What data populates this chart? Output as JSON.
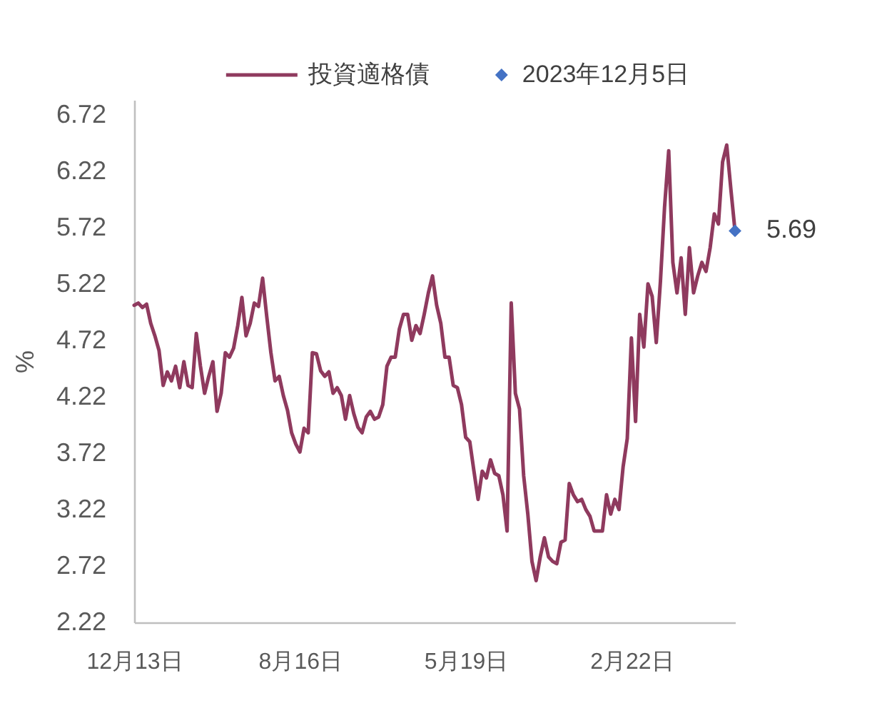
{
  "chart_data": {
    "type": "line",
    "ylabel": "%",
    "categories": [
      "12月13日",
      null,
      null,
      null,
      null,
      null,
      null,
      null,
      null,
      null,
      null,
      null,
      null,
      null,
      null,
      null,
      null,
      null,
      null,
      null,
      null,
      null,
      null,
      null,
      null,
      null,
      null,
      null,
      null,
      null,
      null,
      null,
      null,
      null,
      null,
      null,
      null,
      null,
      null,
      null,
      "8月16日",
      null,
      null,
      null,
      null,
      null,
      null,
      null,
      null,
      null,
      null,
      null,
      null,
      null,
      null,
      null,
      null,
      null,
      null,
      null,
      null,
      null,
      null,
      null,
      null,
      null,
      null,
      null,
      null,
      null,
      null,
      null,
      null,
      null,
      null,
      null,
      null,
      null,
      null,
      null,
      "5月19日",
      null,
      null,
      null,
      null,
      null,
      null,
      null,
      null,
      null,
      null,
      null,
      null,
      null,
      null,
      null,
      null,
      null,
      null,
      null,
      null,
      null,
      null,
      null,
      null,
      null,
      null,
      null,
      null,
      null,
      null,
      null,
      null,
      null,
      null,
      null,
      null,
      null,
      null,
      null,
      "2月22日",
      null,
      null,
      null,
      null,
      null,
      null,
      null,
      null,
      null,
      null,
      null,
      null,
      null,
      null,
      null,
      null,
      null,
      null,
      null,
      null,
      null,
      null,
      null,
      null,
      null
    ],
    "series": [
      {
        "name": "投資適格債",
        "color": "#8f3a5e",
        "values": [
          5.03,
          5.05,
          5.01,
          5.04,
          4.87,
          4.76,
          4.63,
          4.32,
          4.44,
          4.36,
          4.49,
          4.3,
          4.53,
          4.32,
          4.3,
          4.78,
          4.49,
          4.25,
          4.4,
          4.53,
          4.09,
          4.25,
          4.61,
          4.57,
          4.65,
          4.85,
          5.1,
          4.76,
          4.87,
          5.05,
          5.02,
          5.27,
          4.93,
          4.61,
          4.36,
          4.4,
          4.23,
          4.1,
          3.9,
          3.8,
          3.73,
          3.94,
          3.9,
          4.61,
          4.6,
          4.45,
          4.4,
          4.44,
          4.25,
          4.3,
          4.23,
          4.02,
          4.23,
          4.07,
          3.95,
          3.9,
          4.04,
          4.09,
          4.02,
          4.04,
          4.15,
          4.49,
          4.57,
          4.57,
          4.82,
          4.95,
          4.95,
          4.72,
          4.85,
          4.78,
          4.95,
          5.14,
          5.29,
          5.03,
          4.87,
          4.57,
          4.57,
          4.32,
          4.3,
          4.15,
          3.86,
          3.82,
          3.56,
          3.31,
          3.56,
          3.5,
          3.66,
          3.54,
          3.52,
          3.35,
          3.03,
          5.05,
          4.25,
          4.11,
          3.52,
          3.18,
          2.76,
          2.59,
          2.8,
          2.97,
          2.8,
          2.76,
          2.74,
          2.93,
          2.95,
          3.45,
          3.35,
          3.29,
          3.31,
          3.22,
          3.16,
          3.03,
          3.03,
          3.03,
          3.35,
          3.18,
          3.31,
          3.22,
          3.6,
          3.85,
          4.74,
          4.0,
          4.95,
          4.66,
          5.22,
          5.11,
          4.7,
          5.24,
          5.9,
          6.4,
          5.41,
          5.14,
          5.45,
          4.95,
          5.54,
          5.14,
          5.29,
          5.41,
          5.33,
          5.54,
          5.84,
          5.75,
          6.3,
          6.45,
          6.06,
          5.69
        ]
      },
      {
        "type": "scatter",
        "name": "2023年12月5日",
        "color": "#4472c4",
        "marker": "diamond",
        "values": [
          null,
          null,
          null,
          null,
          null,
          null,
          null,
          null,
          null,
          null,
          null,
          null,
          null,
          null,
          null,
          null,
          null,
          null,
          null,
          null,
          null,
          null,
          null,
          null,
          null,
          null,
          null,
          null,
          null,
          null,
          null,
          null,
          null,
          null,
          null,
          null,
          null,
          null,
          null,
          null,
          null,
          null,
          null,
          null,
          null,
          null,
          null,
          null,
          null,
          null,
          null,
          null,
          null,
          null,
          null,
          null,
          null,
          null,
          null,
          null,
          null,
          null,
          null,
          null,
          null,
          null,
          null,
          null,
          null,
          null,
          null,
          null,
          null,
          null,
          null,
          null,
          null,
          null,
          null,
          null,
          null,
          null,
          null,
          null,
          null,
          null,
          null,
          null,
          null,
          null,
          null,
          null,
          null,
          null,
          null,
          null,
          null,
          null,
          null,
          null,
          null,
          null,
          null,
          null,
          null,
          null,
          null,
          null,
          null,
          null,
          null,
          null,
          null,
          null,
          null,
          null,
          null,
          null,
          null,
          null,
          null,
          null,
          null,
          null,
          null,
          null,
          null,
          null,
          null,
          null,
          null,
          null,
          null,
          null,
          null,
          null,
          null,
          null,
          null,
          null,
          null,
          null,
          null,
          null,
          null,
          5.69
        ],
        "value_labels": [
          null,
          null,
          null,
          null,
          null,
          null,
          null,
          null,
          null,
          null,
          null,
          null,
          null,
          null,
          null,
          null,
          null,
          null,
          null,
          null,
          null,
          null,
          null,
          null,
          null,
          null,
          null,
          null,
          null,
          null,
          null,
          null,
          null,
          null,
          null,
          null,
          null,
          null,
          null,
          null,
          null,
          null,
          null,
          null,
          null,
          null,
          null,
          null,
          null,
          null,
          null,
          null,
          null,
          null,
          null,
          null,
          null,
          null,
          null,
          null,
          null,
          null,
          null,
          null,
          null,
          null,
          null,
          null,
          null,
          null,
          null,
          null,
          null,
          null,
          null,
          null,
          null,
          null,
          null,
          null,
          null,
          null,
          null,
          null,
          null,
          null,
          null,
          null,
          null,
          null,
          null,
          null,
          null,
          null,
          null,
          null,
          null,
          null,
          null,
          null,
          null,
          null,
          null,
          null,
          null,
          null,
          null,
          null,
          null,
          null,
          null,
          null,
          null,
          null,
          null,
          null,
          null,
          null,
          null,
          null,
          null,
          null,
          null,
          null,
          null,
          null,
          null,
          null,
          null,
          null,
          null,
          null,
          null,
          null,
          null,
          null,
          null,
          null,
          null,
          null,
          null,
          null,
          null,
          null,
          null,
          "5.69"
        ]
      }
    ],
    "ylim": [
      2.22,
      6.85
    ],
    "yticks": [
      2.22,
      2.72,
      3.22,
      3.72,
      4.22,
      4.72,
      5.22,
      5.72,
      6.22,
      6.72
    ],
    "legend": "top"
  }
}
